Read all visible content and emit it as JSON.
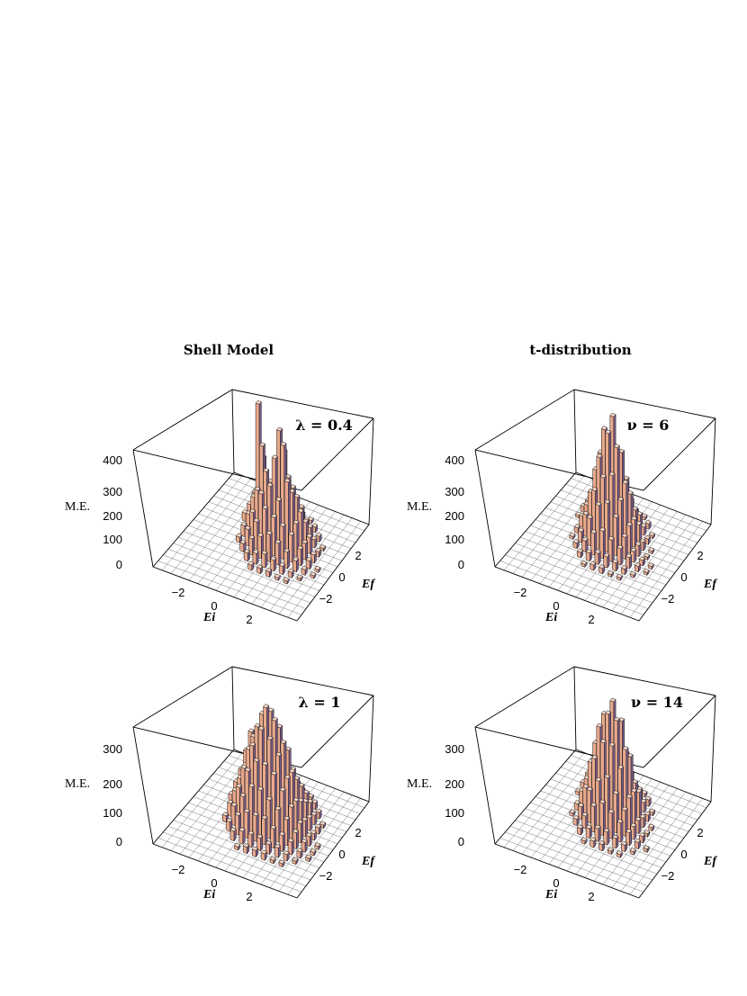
{
  "column_titles": [
    "Shell Model",
    "t-distribution"
  ],
  "chart_data": [
    {
      "type": "bar3d",
      "title": "Shell Model",
      "annotation": "λ = 0.4",
      "zlabel": "M.E.",
      "xlabel": "Ei",
      "ylabel": "Ef",
      "zticks": [
        "0",
        "100",
        "200",
        "300",
        "400"
      ],
      "zlim": [
        0,
        450
      ],
      "xticks": [
        "−2",
        "0",
        "2"
      ],
      "yticks": [
        "2",
        "0",
        "−2"
      ],
      "peak_value": 420,
      "bar_heights": [
        [
          0,
          0,
          0,
          0,
          0,
          0,
          0,
          0,
          0,
          0,
          0,
          0,
          0,
          0,
          0,
          0
        ],
        [
          0,
          0,
          0,
          0,
          0,
          0,
          0,
          0,
          0,
          0,
          0,
          0,
          0,
          0,
          0,
          0
        ],
        [
          0,
          0,
          0,
          0,
          0,
          0,
          0,
          40,
          30,
          20,
          10,
          0,
          0,
          0,
          0,
          0
        ],
        [
          0,
          0,
          0,
          0,
          60,
          200,
          60,
          120,
          80,
          60,
          30,
          20,
          0,
          0,
          0,
          0
        ],
        [
          0,
          0,
          0,
          0,
          40,
          420,
          80,
          200,
          280,
          160,
          100,
          40,
          20,
          0,
          0,
          0
        ],
        [
          0,
          0,
          0,
          0,
          30,
          100,
          300,
          180,
          380,
          220,
          160,
          80,
          30,
          10,
          0,
          0
        ],
        [
          0,
          0,
          0,
          0,
          0,
          60,
          160,
          240,
          300,
          360,
          200,
          140,
          60,
          20,
          0,
          0
        ],
        [
          0,
          0,
          0,
          0,
          0,
          40,
          100,
          180,
          220,
          180,
          260,
          120,
          60,
          30,
          0,
          0
        ],
        [
          0,
          0,
          0,
          0,
          0,
          20,
          60,
          100,
          160,
          140,
          120,
          100,
          60,
          30,
          10,
          0
        ],
        [
          0,
          0,
          0,
          0,
          0,
          0,
          30,
          60,
          80,
          100,
          80,
          60,
          40,
          20,
          10,
          0
        ],
        [
          0,
          0,
          0,
          0,
          0,
          0,
          0,
          30,
          40,
          50,
          40,
          30,
          20,
          10,
          0,
          0
        ],
        [
          0,
          0,
          0,
          0,
          0,
          0,
          0,
          0,
          20,
          20,
          20,
          10,
          10,
          0,
          0,
          0
        ],
        [
          0,
          0,
          0,
          0,
          0,
          0,
          0,
          0,
          0,
          0,
          0,
          0,
          0,
          0,
          0,
          0
        ],
        [
          0,
          0,
          0,
          0,
          0,
          0,
          0,
          0,
          0,
          0,
          0,
          0,
          0,
          0,
          0,
          0
        ],
        [
          0,
          0,
          0,
          0,
          0,
          0,
          0,
          0,
          0,
          0,
          0,
          0,
          0,
          0,
          0,
          0
        ],
        [
          0,
          0,
          0,
          0,
          0,
          0,
          0,
          0,
          0,
          0,
          0,
          0,
          0,
          0,
          0,
          0
        ]
      ]
    },
    {
      "type": "bar3d",
      "title": "t-distribution",
      "annotation": "ν = 6",
      "zlabel": "M.E.",
      "xlabel": "Ei",
      "ylabel": "Ef",
      "zticks": [
        "0",
        "100",
        "200",
        "300",
        "400"
      ],
      "zlim": [
        0,
        450
      ],
      "xticks": [
        "−2",
        "0",
        "2"
      ],
      "yticks": [
        "2",
        "0",
        "−2"
      ],
      "peak_value": 420,
      "bar_heights": [
        [
          0,
          0,
          0,
          0,
          0,
          0,
          0,
          0,
          0,
          0,
          0,
          0,
          0,
          0,
          0,
          0
        ],
        [
          0,
          0,
          0,
          0,
          0,
          0,
          0,
          0,
          0,
          0,
          0,
          0,
          0,
          0,
          0,
          0
        ],
        [
          0,
          0,
          0,
          10,
          20,
          30,
          40,
          30,
          20,
          10,
          0,
          0,
          0,
          0,
          0,
          0
        ],
        [
          0,
          0,
          0,
          20,
          60,
          120,
          200,
          140,
          80,
          40,
          20,
          0,
          0,
          0,
          0,
          0
        ],
        [
          0,
          0,
          0,
          20,
          80,
          240,
          300,
          260,
          180,
          80,
          30,
          10,
          0,
          0,
          0,
          0
        ],
        [
          0,
          0,
          0,
          10,
          60,
          200,
          360,
          420,
          300,
          160,
          60,
          20,
          0,
          0,
          0,
          0
        ],
        [
          0,
          0,
          0,
          0,
          40,
          140,
          280,
          380,
          340,
          220,
          100,
          30,
          10,
          0,
          0,
          0
        ],
        [
          0,
          0,
          0,
          0,
          20,
          80,
          180,
          240,
          260,
          180,
          100,
          40,
          10,
          0,
          0,
          0
        ],
        [
          0,
          0,
          0,
          0,
          10,
          40,
          100,
          160,
          180,
          140,
          80,
          40,
          20,
          10,
          0,
          0
        ],
        [
          0,
          0,
          0,
          0,
          0,
          20,
          40,
          80,
          100,
          80,
          60,
          40,
          20,
          10,
          0,
          0
        ],
        [
          0,
          0,
          0,
          0,
          0,
          0,
          20,
          30,
          40,
          40,
          30,
          20,
          10,
          0,
          0,
          0
        ],
        [
          0,
          0,
          0,
          0,
          0,
          0,
          0,
          10,
          20,
          20,
          10,
          10,
          0,
          0,
          0,
          0
        ],
        [
          0,
          0,
          0,
          0,
          0,
          0,
          0,
          0,
          0,
          0,
          0,
          0,
          0,
          0,
          0,
          0
        ],
        [
          0,
          0,
          0,
          0,
          0,
          0,
          0,
          0,
          0,
          0,
          0,
          0,
          0,
          0,
          0,
          0
        ],
        [
          0,
          0,
          0,
          0,
          0,
          0,
          0,
          0,
          0,
          0,
          0,
          0,
          0,
          0,
          0,
          0
        ],
        [
          0,
          0,
          0,
          0,
          0,
          0,
          0,
          0,
          0,
          0,
          0,
          0,
          0,
          0,
          0,
          0
        ]
      ]
    },
    {
      "type": "bar3d",
      "title": "",
      "annotation": "λ = 1",
      "zlabel": "M.E.",
      "xlabel": "Ei",
      "ylabel": "Ef",
      "zticks": [
        "0",
        "100",
        "200",
        "300"
      ],
      "zlim": [
        0,
        380
      ],
      "xticks": [
        "−2",
        "0",
        "2"
      ],
      "yticks": [
        "2",
        "0",
        "−2"
      ],
      "peak_value": 330,
      "bar_heights": [
        [
          0,
          0,
          0,
          0,
          0,
          0,
          0,
          0,
          0,
          0,
          0,
          0,
          0,
          0,
          0,
          0
        ],
        [
          0,
          0,
          0,
          0,
          0,
          0,
          0,
          0,
          0,
          0,
          0,
          0,
          0,
          0,
          0,
          0
        ],
        [
          0,
          0,
          0,
          140,
          20,
          40,
          60,
          40,
          30,
          20,
          10,
          0,
          0,
          0,
          0,
          0
        ],
        [
          0,
          0,
          0,
          100,
          60,
          120,
          160,
          120,
          80,
          60,
          40,
          20,
          0,
          0,
          0,
          0
        ],
        [
          0,
          0,
          0,
          60,
          80,
          180,
          220,
          200,
          160,
          120,
          80,
          40,
          20,
          0,
          0,
          0
        ],
        [
          0,
          0,
          0,
          40,
          100,
          200,
          280,
          300,
          260,
          200,
          120,
          60,
          30,
          10,
          0,
          0
        ],
        [
          0,
          0,
          0,
          20,
          80,
          180,
          260,
          330,
          300,
          240,
          160,
          80,
          40,
          20,
          0,
          0
        ],
        [
          0,
          0,
          0,
          0,
          60,
          140,
          220,
          280,
          260,
          220,
          160,
          100,
          50,
          20,
          0,
          0
        ],
        [
          0,
          0,
          0,
          0,
          40,
          100,
          160,
          200,
          200,
          180,
          140,
          100,
          60,
          30,
          10,
          0
        ],
        [
          0,
          0,
          0,
          0,
          20,
          60,
          100,
          140,
          140,
          120,
          100,
          80,
          50,
          30,
          10,
          0
        ],
        [
          0,
          0,
          0,
          0,
          0,
          30,
          60,
          80,
          80,
          80,
          60,
          50,
          40,
          20,
          10,
          0
        ],
        [
          0,
          0,
          0,
          0,
          0,
          0,
          30,
          40,
          40,
          40,
          30,
          30,
          20,
          10,
          0,
          0
        ],
        [
          0,
          0,
          0,
          0,
          0,
          0,
          0,
          10,
          20,
          20,
          20,
          10,
          10,
          0,
          0,
          0
        ],
        [
          0,
          0,
          0,
          0,
          0,
          0,
          0,
          0,
          0,
          0,
          0,
          0,
          0,
          0,
          0,
          0
        ],
        [
          0,
          0,
          0,
          0,
          0,
          0,
          0,
          0,
          0,
          0,
          0,
          0,
          0,
          0,
          0,
          0
        ],
        [
          0,
          0,
          0,
          0,
          0,
          0,
          0,
          0,
          0,
          0,
          0,
          0,
          0,
          0,
          0,
          0
        ]
      ]
    },
    {
      "type": "bar3d",
      "title": "",
      "annotation": "ν = 14",
      "zlabel": "M.E.",
      "xlabel": "Ei",
      "ylabel": "Ef",
      "zticks": [
        "0",
        "100",
        "200",
        "300"
      ],
      "zlim": [
        0,
        380
      ],
      "xticks": [
        "−2",
        "0",
        "2"
      ],
      "yticks": [
        "2",
        "0",
        "−2"
      ],
      "peak_value": 330,
      "bar_heights": [
        [
          0,
          0,
          0,
          0,
          0,
          0,
          0,
          0,
          0,
          0,
          0,
          0,
          0,
          0,
          0,
          0
        ],
        [
          0,
          0,
          0,
          0,
          0,
          0,
          0,
          0,
          0,
          0,
          0,
          0,
          0,
          0,
          0,
          0
        ],
        [
          0,
          0,
          0,
          20,
          30,
          40,
          40,
          30,
          20,
          10,
          0,
          0,
          0,
          0,
          0,
          0
        ],
        [
          0,
          0,
          0,
          30,
          60,
          100,
          140,
          120,
          80,
          40,
          20,
          0,
          0,
          0,
          0,
          0
        ],
        [
          0,
          0,
          0,
          20,
          80,
          160,
          240,
          220,
          160,
          80,
          30,
          10,
          0,
          0,
          0,
          0
        ],
        [
          0,
          0,
          0,
          10,
          60,
          180,
          280,
          330,
          280,
          180,
          80,
          20,
          0,
          0,
          0,
          0
        ],
        [
          0,
          0,
          0,
          0,
          40,
          140,
          260,
          310,
          300,
          220,
          100,
          30,
          10,
          0,
          0,
          0
        ],
        [
          0,
          0,
          0,
          0,
          20,
          80,
          180,
          240,
          240,
          180,
          100,
          40,
          10,
          0,
          0,
          0
        ],
        [
          0,
          0,
          0,
          0,
          10,
          40,
          100,
          140,
          160,
          120,
          80,
          40,
          20,
          0,
          0,
          0
        ],
        [
          0,
          0,
          0,
          0,
          0,
          20,
          40,
          80,
          100,
          80,
          60,
          40,
          20,
          10,
          0,
          0
        ],
        [
          0,
          0,
          0,
          0,
          0,
          0,
          20,
          30,
          40,
          40,
          30,
          20,
          10,
          0,
          0,
          0
        ],
        [
          0,
          0,
          0,
          0,
          0,
          0,
          0,
          10,
          20,
          20,
          10,
          10,
          0,
          0,
          0,
          0
        ],
        [
          0,
          0,
          0,
          0,
          0,
          0,
          0,
          0,
          0,
          0,
          0,
          0,
          0,
          0,
          0,
          0
        ],
        [
          0,
          0,
          0,
          0,
          0,
          0,
          0,
          0,
          0,
          0,
          0,
          0,
          0,
          0,
          0,
          0
        ],
        [
          0,
          0,
          0,
          0,
          0,
          0,
          0,
          0,
          0,
          0,
          0,
          0,
          0,
          0,
          0,
          0
        ],
        [
          0,
          0,
          0,
          0,
          0,
          0,
          0,
          0,
          0,
          0,
          0,
          0,
          0,
          0,
          0,
          0
        ]
      ]
    }
  ],
  "colors": {
    "bar_front": "#e8a98c",
    "bar_side": "#7a5c88",
    "bar_top": "#f4d7c4",
    "bar_edge": "#1a1a1a",
    "box": "#000000"
  }
}
